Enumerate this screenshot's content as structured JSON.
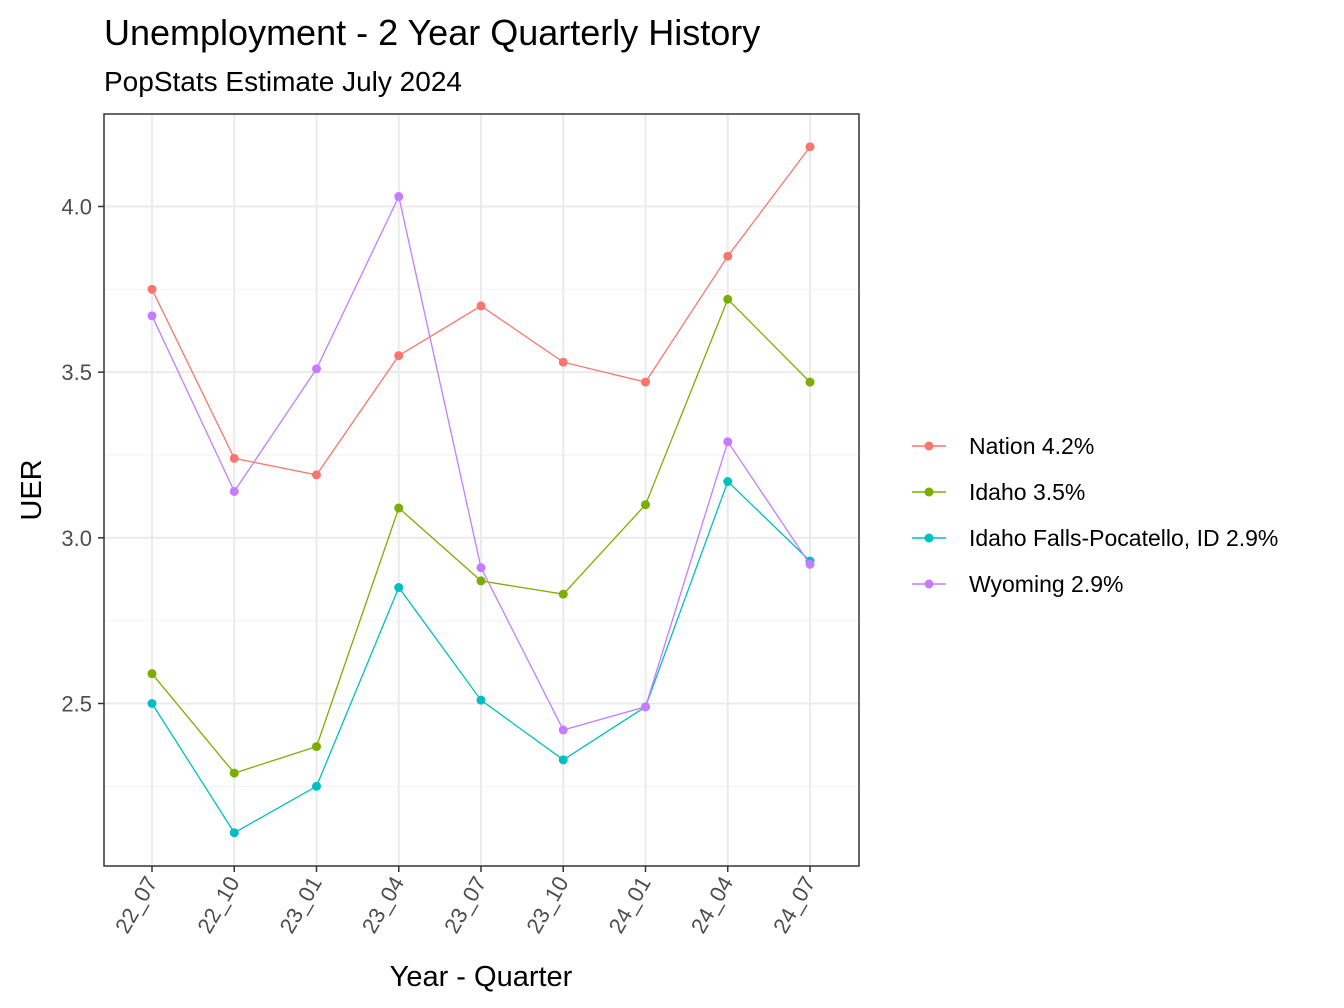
{
  "chart_data": {
    "type": "line",
    "title": "Unemployment - 2 Year Quarterly History",
    "subtitle": "PopStats Estimate July 2024",
    "xlabel": "Year - Quarter",
    "ylabel": "UER",
    "categories": [
      "22_07",
      "22_10",
      "23_01",
      "23_04",
      "23_07",
      "23_10",
      "24_01",
      "24_04",
      "24_07"
    ],
    "y_ticks": [
      "2.5",
      "3.0",
      "3.5",
      "4.0"
    ],
    "ylim": [
      2.0,
      4.27
    ],
    "grid": true,
    "legend_position": "right",
    "series": [
      {
        "name": "Nation 4.2%",
        "color": "#F8766D",
        "values": [
          3.75,
          3.24,
          3.19,
          3.55,
          3.7,
          3.53,
          3.47,
          3.85,
          4.18
        ]
      },
      {
        "name": "Idaho 3.5%",
        "color": "#7CAE00",
        "values": [
          2.59,
          2.29,
          2.37,
          3.09,
          2.87,
          2.83,
          3.1,
          3.72,
          3.47
        ]
      },
      {
        "name": "Idaho Falls-Pocatello, ID 2.9%",
        "color": "#00BFC4",
        "values": [
          2.5,
          2.11,
          2.25,
          2.85,
          2.51,
          2.33,
          2.49,
          3.17,
          2.93
        ]
      },
      {
        "name": "Wyoming 2.9%",
        "color": "#C77CFF",
        "values": [
          3.67,
          3.14,
          3.51,
          4.03,
          2.91,
          2.42,
          2.49,
          3.29,
          2.92
        ]
      }
    ]
  }
}
